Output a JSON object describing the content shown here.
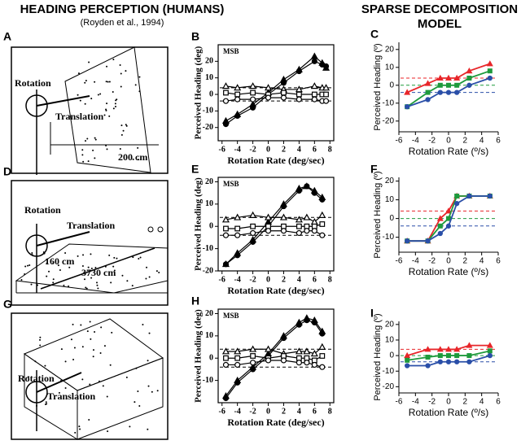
{
  "headers": {
    "left_title": "HEADING PERCEPTION (HUMANS)",
    "citation": "(Royden et al., 1994)",
    "right_title": [
      "SPARSE DECOMPOSITION",
      "MODEL"
    ]
  },
  "diagrams": [
    {
      "panel": "A",
      "labels": [
        "Rotation",
        "Translation",
        "200 cm"
      ]
    },
    {
      "panel": "D",
      "labels": [
        "Rotation",
        "Translation",
        "160 cm",
        "3730 cm"
      ]
    },
    {
      "panel": "G",
      "labels": [
        "Rotation",
        "Translation"
      ]
    }
  ],
  "chart_data": [
    {
      "type": "line",
      "panel": "B",
      "style": "human",
      "annotation": "MSB",
      "xlabel": "Rotation Rate (deg/sec)",
      "ylabel": "Perceived Heading (deg)",
      "x": [
        -5.5,
        -4,
        -2,
        0,
        2,
        4,
        6,
        7,
        7.5
      ],
      "xlim": [
        -6.5,
        8.5
      ],
      "xticks": [
        -6,
        -4,
        -2,
        0,
        2,
        4,
        6,
        8
      ],
      "ylim": [
        -28,
        30
      ],
      "yticks": [
        -20,
        -10,
        0,
        10,
        20
      ],
      "hlines": [
        {
          "value": 4,
          "color": "#000000"
        },
        {
          "value": -4,
          "color": "#000000"
        }
      ],
      "series": [
        {
          "color": "#000000",
          "marker": "triangle",
          "filled": true,
          "values": [
            -16,
            -12,
            -6,
            1,
            9,
            15,
            23,
            19,
            16
          ]
        },
        {
          "color": "#000000",
          "marker": "circle",
          "filled": true,
          "values": [
            -18,
            -13,
            -8,
            0,
            7,
            14,
            20,
            18,
            17
          ]
        },
        {
          "color": "#000000",
          "marker": "triangle",
          "filled": false,
          "values": [
            5,
            4,
            5,
            4,
            3,
            3,
            5,
            4,
            4
          ]
        },
        {
          "color": "#000000",
          "marker": "square",
          "filled": false,
          "values": [
            1,
            0,
            1,
            0,
            1,
            0,
            0,
            0,
            0
          ]
        },
        {
          "color": "#000000",
          "marker": "circle",
          "filled": false,
          "values": [
            -4,
            -3,
            -3,
            -2,
            -2,
            -3,
            -3,
            -4,
            -4
          ]
        }
      ]
    },
    {
      "type": "line",
      "panel": "C",
      "style": "model",
      "xlabel": "Rotation Rate (º/s)",
      "ylabel": "Perceived Heading (º)",
      "x": [
        -5,
        -2.5,
        -1,
        0,
        1,
        2.5,
        5
      ],
      "xlim": [
        -6,
        6
      ],
      "xticks": [
        -6,
        -4,
        -2,
        0,
        2,
        4,
        6
      ],
      "ylim": [
        -26,
        24
      ],
      "yticks": [
        -20,
        -10,
        0,
        10,
        20
      ],
      "hlines": [
        {
          "value": 4,
          "color": "#e8262a"
        },
        {
          "value": 0,
          "color": "#1e9a3c"
        },
        {
          "value": -4,
          "color": "#2a4fa8"
        }
      ],
      "series": [
        {
          "color": "#e8262a",
          "marker": "triangle",
          "filled": true,
          "values": [
            -4,
            1,
            4,
            4,
            4,
            8,
            12
          ]
        },
        {
          "color": "#1e9a3c",
          "marker": "square",
          "filled": true,
          "values": [
            -12,
            -4,
            0,
            0,
            0,
            4,
            8
          ]
        },
        {
          "color": "#2a4fa8",
          "marker": "circle",
          "filled": true,
          "values": [
            -12,
            -8,
            -4,
            -4,
            -4,
            0,
            4
          ]
        }
      ]
    },
    {
      "type": "line",
      "panel": "E",
      "style": "human",
      "annotation": "MSB",
      "xlabel": "Rotation Rate (deg/sec)",
      "ylabel": "Perceived Heading (deg)",
      "x": [
        -5.5,
        -4,
        -2,
        0,
        2,
        4,
        5,
        6,
        7
      ],
      "xlim": [
        -6.5,
        8.5
      ],
      "xticks": [
        -6,
        -4,
        -2,
        0,
        2,
        4,
        6,
        8
      ],
      "ylim": [
        -20,
        22
      ],
      "yticks": [
        -20,
        -10,
        0,
        10,
        20
      ],
      "hlines": [
        {
          "value": 4,
          "color": "#000000"
        },
        {
          "value": -4,
          "color": "#000000"
        }
      ],
      "series": [
        {
          "color": "#000000",
          "marker": "triangle",
          "filled": true,
          "values": [
            -17,
            -12,
            -6,
            2,
            10,
            17,
            18,
            16,
            13
          ]
        },
        {
          "color": "#000000",
          "marker": "circle",
          "filled": true,
          "values": [
            -17,
            -13,
            -7,
            0,
            9,
            16,
            18,
            15,
            12
          ]
        },
        {
          "color": "#000000",
          "marker": "triangle",
          "filled": false,
          "values": [
            3,
            4,
            5,
            4,
            4,
            3,
            4,
            2,
            5
          ]
        },
        {
          "color": "#000000",
          "marker": "square",
          "filled": false,
          "values": [
            -1,
            -1,
            0,
            0,
            0,
            0,
            0,
            0,
            1
          ]
        },
        {
          "color": "#000000",
          "marker": "circle",
          "filled": false,
          "values": [
            -4,
            -4,
            -3,
            -2,
            -2,
            -3,
            -2,
            -2,
            -4
          ]
        }
      ]
    },
    {
      "type": "line",
      "panel": "F",
      "style": "model",
      "xlabel": "Rotation Rate (º/s)",
      "ylabel": "Perceived Heading (º)",
      "x": [
        -5,
        -2.5,
        -1,
        0,
        1,
        2.5,
        5
      ],
      "xlim": [
        -6,
        6
      ],
      "xticks": [
        -6,
        -4,
        -2,
        0,
        2,
        4,
        6
      ],
      "ylim": [
        -18,
        22
      ],
      "yticks": [
        -10,
        0,
        10,
        20
      ],
      "hlines": [
        {
          "value": 4,
          "color": "#e8262a"
        },
        {
          "value": 0,
          "color": "#1e9a3c"
        },
        {
          "value": -4,
          "color": "#2a4fa8"
        }
      ],
      "series": [
        {
          "color": "#e8262a",
          "marker": "triangle",
          "filled": true,
          "values": [
            -12,
            -12,
            0,
            4,
            12,
            12,
            12
          ]
        },
        {
          "color": "#1e9a3c",
          "marker": "square",
          "filled": true,
          "values": [
            -12,
            -12,
            -4,
            0,
            12,
            12,
            12
          ]
        },
        {
          "color": "#2a4fa8",
          "marker": "circle",
          "filled": true,
          "values": [
            -12,
            -12,
            -8,
            -4,
            8,
            12,
            12
          ]
        }
      ]
    },
    {
      "type": "line",
      "panel": "H",
      "style": "human",
      "annotation": "MSB",
      "xlabel": "Rotation Rate (deg/sec)",
      "ylabel": "Perceived Heading (deg)",
      "x": [
        -5.5,
        -4,
        -2,
        0,
        2,
        4,
        5,
        6,
        7
      ],
      "xlim": [
        -6.5,
        8.5
      ],
      "xticks": [
        -6,
        -4,
        -2,
        0,
        2,
        4,
        6,
        8
      ],
      "ylim": [
        -20,
        22
      ],
      "yticks": [
        -10,
        0,
        10,
        20
      ],
      "hlines": [
        {
          "value": 4,
          "color": "#000000"
        },
        {
          "value": -4,
          "color": "#000000"
        }
      ],
      "series": [
        {
          "color": "#000000",
          "marker": "triangle",
          "filled": true,
          "values": [
            -17,
            -10,
            -4,
            2,
            10,
            16,
            18,
            17,
            12
          ]
        },
        {
          "color": "#000000",
          "marker": "circle",
          "filled": true,
          "values": [
            -18,
            -11,
            -5,
            1,
            9,
            15,
            17,
            16,
            11
          ]
        },
        {
          "color": "#000000",
          "marker": "triangle",
          "filled": false,
          "values": [
            3,
            3,
            4,
            4,
            2,
            3,
            3,
            2,
            5
          ]
        },
        {
          "color": "#000000",
          "marker": "square",
          "filled": false,
          "values": [
            0,
            0,
            1,
            0,
            1,
            0,
            0,
            -1,
            1
          ]
        },
        {
          "color": "#000000",
          "marker": "circle",
          "filled": false,
          "values": [
            -3,
            -3,
            -2,
            -1,
            -1,
            -2,
            -2,
            -3,
            -4
          ]
        }
      ]
    },
    {
      "type": "line",
      "panel": "I",
      "style": "model",
      "xlabel": "Rotation Rate (º/s)",
      "ylabel": "Perceived Heading (º)",
      "x": [
        -5,
        -2.5,
        -1,
        0,
        1,
        2.5,
        5
      ],
      "xlim": [
        -6,
        6
      ],
      "xticks": [
        -6,
        -4,
        -2,
        0,
        2,
        4,
        6
      ],
      "ylim": [
        -24,
        22
      ],
      "yticks": [
        -20,
        -10,
        0,
        10,
        20
      ],
      "hlines": [
        {
          "value": 4,
          "color": "#e8262a"
        },
        {
          "value": 0,
          "color": "#1e9a3c"
        },
        {
          "value": -4,
          "color": "#2a4fa8"
        }
      ],
      "series": [
        {
          "color": "#e8262a",
          "marker": "triangle",
          "filled": true,
          "values": [
            0,
            4,
            4,
            4,
            4,
            6.5,
            6.5
          ]
        },
        {
          "color": "#1e9a3c",
          "marker": "square",
          "filled": true,
          "values": [
            -3,
            -1,
            0,
            0,
            0,
            0,
            3
          ]
        },
        {
          "color": "#2a4fa8",
          "marker": "circle",
          "filled": true,
          "values": [
            -6.5,
            -6.5,
            -4,
            -4,
            -4,
            -4,
            0
          ]
        }
      ]
    }
  ]
}
